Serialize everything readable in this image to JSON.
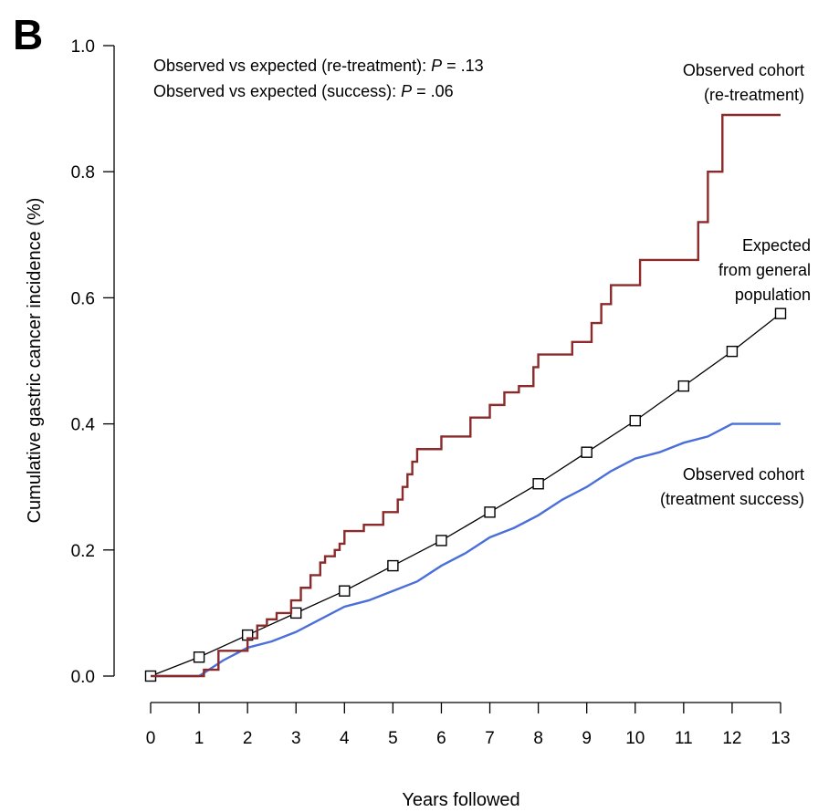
{
  "panel_label": "B",
  "annotations": {
    "line1_prefix": "Observed vs expected (re-treatment): ",
    "line1_p": "P",
    "line1_value": " = .13",
    "line2_prefix": "Observed vs expected (success): ",
    "line2_p": "P",
    "line2_value": " = .06"
  },
  "series_labels": {
    "retreatment": [
      "Observed cohort",
      "(re-treatment)"
    ],
    "expected": [
      "Expected",
      "from general",
      "population"
    ],
    "success": [
      "Observed cohort",
      "(treatment success)"
    ]
  },
  "colors": {
    "retreatment": "#8b2a2a",
    "success": "#4a6fd8",
    "expected": "#000000"
  },
  "chart_data": {
    "type": "line",
    "xlabel": "Years followed",
    "ylabel": "Cumulative gastric cancer incidence (%)",
    "xlim": [
      0,
      13
    ],
    "ylim": [
      0.0,
      1.0
    ],
    "xticks": [
      "0",
      "1",
      "2",
      "3",
      "4",
      "5",
      "6",
      "7",
      "8",
      "9",
      "10",
      "11",
      "12",
      "13"
    ],
    "yticks": [
      "0.0",
      "0.2",
      "0.4",
      "0.6",
      "0.8",
      "1.0"
    ],
    "series": [
      {
        "name": "Observed cohort (re-treatment)",
        "key": "retreatment",
        "style": "step",
        "x": [
          0,
          1.1,
          1.4,
          2.0,
          2.2,
          2.4,
          2.6,
          2.9,
          3.1,
          3.3,
          3.5,
          3.6,
          3.8,
          3.9,
          4.0,
          4.4,
          4.8,
          5.1,
          5.2,
          5.3,
          5.4,
          5.5,
          5.6,
          6.0,
          6.6,
          7.0,
          7.3,
          7.6,
          7.9,
          8.0,
          8.7,
          9.1,
          9.3,
          9.5,
          10.1,
          10.8,
          11.3,
          11.5,
          11.8,
          13
        ],
        "y": [
          0.0,
          0.01,
          0.04,
          0.06,
          0.08,
          0.09,
          0.1,
          0.12,
          0.14,
          0.16,
          0.18,
          0.19,
          0.2,
          0.21,
          0.23,
          0.24,
          0.26,
          0.28,
          0.3,
          0.32,
          0.34,
          0.36,
          0.36,
          0.38,
          0.41,
          0.43,
          0.45,
          0.46,
          0.49,
          0.51,
          0.53,
          0.56,
          0.59,
          0.62,
          0.66,
          0.66,
          0.72,
          0.8,
          0.89,
          0.89
        ]
      },
      {
        "name": "Observed cohort (treatment success)",
        "key": "success",
        "style": "line",
        "x": [
          0,
          1,
          1.5,
          2,
          2.5,
          3,
          3.5,
          4,
          4.5,
          5,
          5.5,
          6,
          6.5,
          7,
          7.5,
          8,
          8.5,
          9,
          9.5,
          10,
          10.5,
          11,
          11.5,
          12,
          12.5,
          13
        ],
        "y": [
          0.0,
          0.0,
          0.025,
          0.045,
          0.055,
          0.07,
          0.09,
          0.11,
          0.12,
          0.135,
          0.15,
          0.175,
          0.195,
          0.22,
          0.235,
          0.255,
          0.28,
          0.3,
          0.325,
          0.345,
          0.355,
          0.37,
          0.38,
          0.4,
          0.4,
          0.4
        ]
      },
      {
        "name": "Expected from general population",
        "key": "expected",
        "style": "line-markers",
        "x": [
          0,
          1,
          2,
          3,
          4,
          5,
          6,
          7,
          8,
          9,
          10,
          11,
          12,
          13
        ],
        "y": [
          0.0,
          0.03,
          0.065,
          0.1,
          0.135,
          0.175,
          0.215,
          0.26,
          0.305,
          0.355,
          0.405,
          0.46,
          0.515,
          0.575
        ]
      }
    ]
  }
}
